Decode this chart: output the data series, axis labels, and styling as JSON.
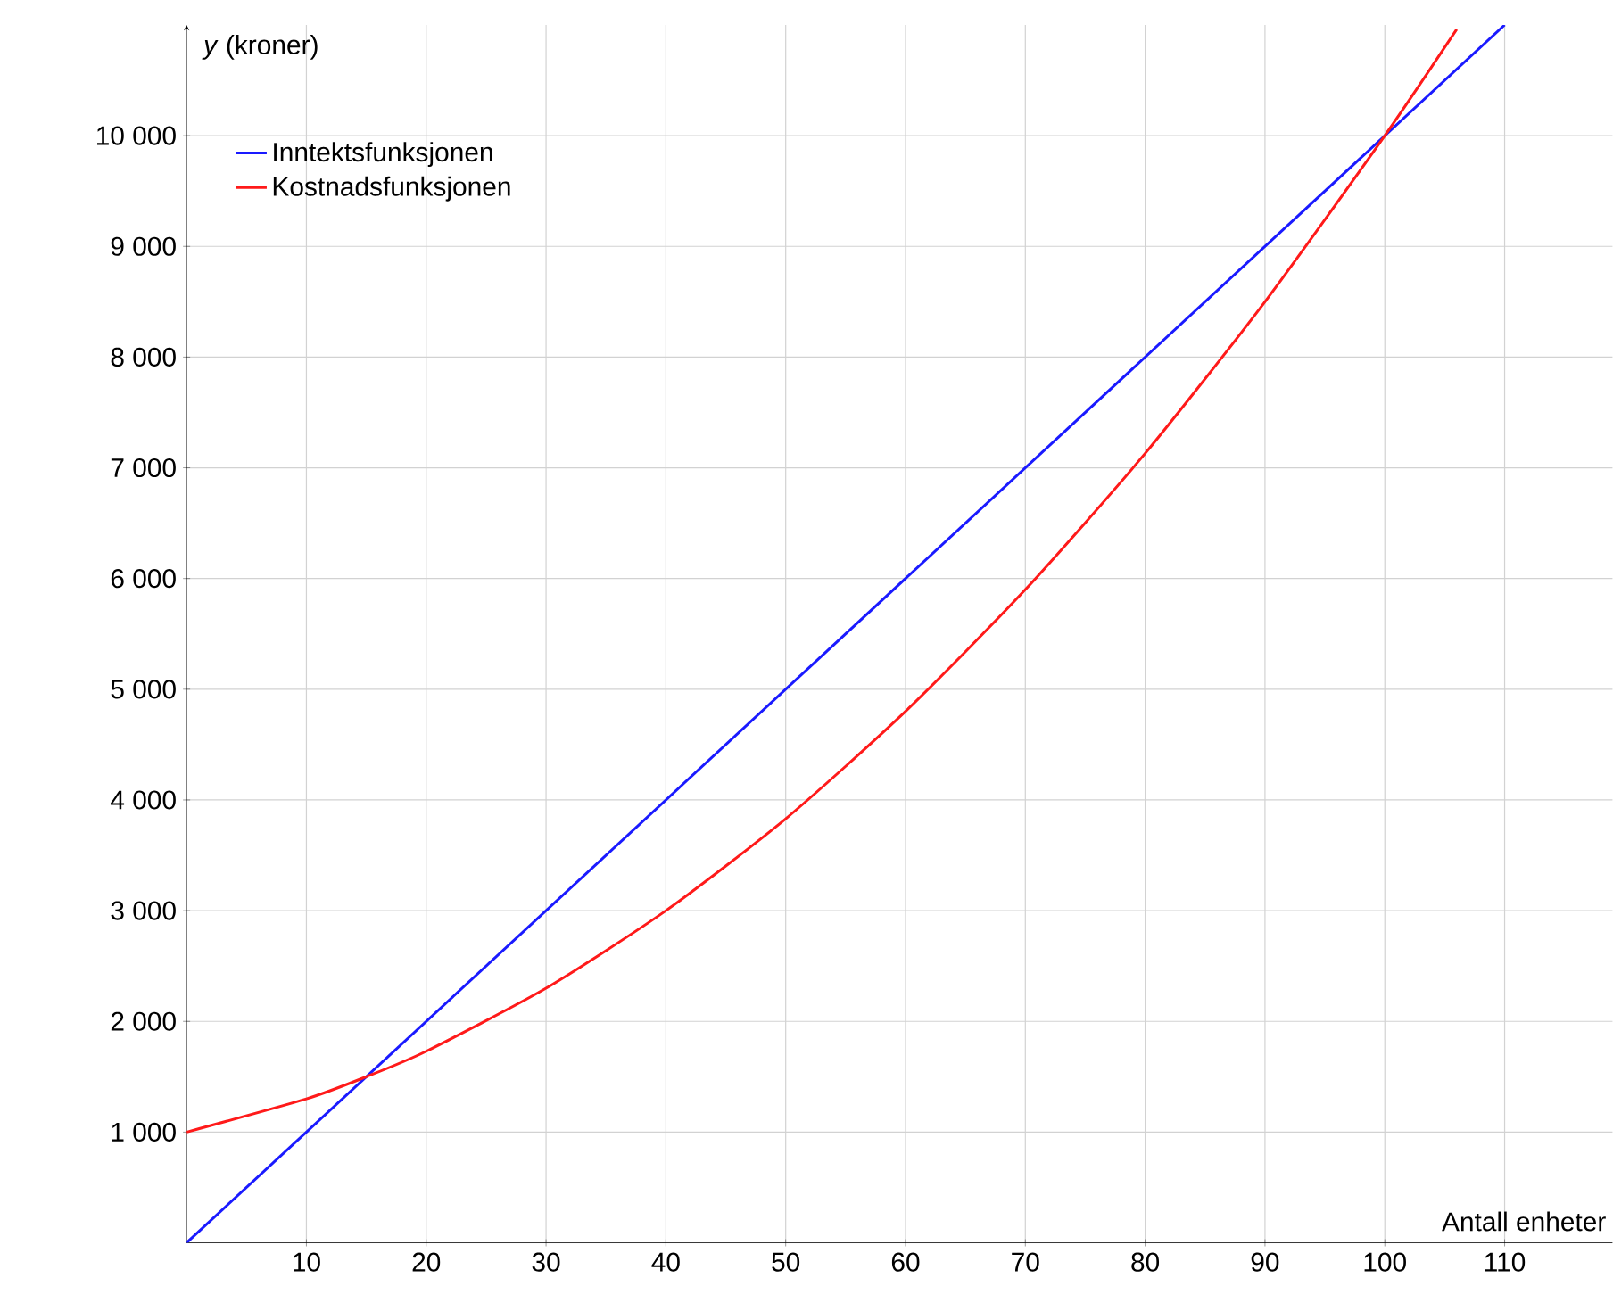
{
  "chart_data": {
    "type": "line",
    "xlabel": "Antall enheter",
    "ylabel": "*y*  (kroner)",
    "xlim": [
      0,
      119
    ],
    "ylim": [
      0,
      11000
    ],
    "xticks": [
      10,
      20,
      30,
      40,
      50,
      60,
      70,
      80,
      90,
      100,
      110
    ],
    "yticks": [
      {
        "value": 1000,
        "label": "1 000"
      },
      {
        "value": 2000,
        "label": "2 000"
      },
      {
        "value": 3000,
        "label": "3 000"
      },
      {
        "value": 4000,
        "label": "4 000"
      },
      {
        "value": 5000,
        "label": "5 000"
      },
      {
        "value": 6000,
        "label": "6 000"
      },
      {
        "value": 7000,
        "label": "7 000"
      },
      {
        "value": 8000,
        "label": "8 000"
      },
      {
        "value": 9000,
        "label": "9 000"
      },
      {
        "value": 10000,
        "label": "10 000"
      }
    ],
    "grid": true,
    "legend": "top left",
    "marker": "none",
    "line_style": "solid",
    "series": [
      {
        "name": "Inntektsfunksjonen",
        "color": "#1a1aff",
        "x": [
          0,
          110
        ],
        "values": [
          0,
          11000
        ]
      },
      {
        "name": "Kostnadsfunksjonen",
        "color": "#ff1a1a",
        "x": [
          0,
          10,
          15,
          20,
          30,
          40,
          50,
          60,
          70,
          80,
          90,
          100,
          106
        ],
        "values": [
          1000,
          1300,
          1500,
          1730,
          2300,
          3000,
          3830,
          4800,
          5900,
          7130,
          8500,
          10000,
          10960
        ]
      }
    ]
  }
}
